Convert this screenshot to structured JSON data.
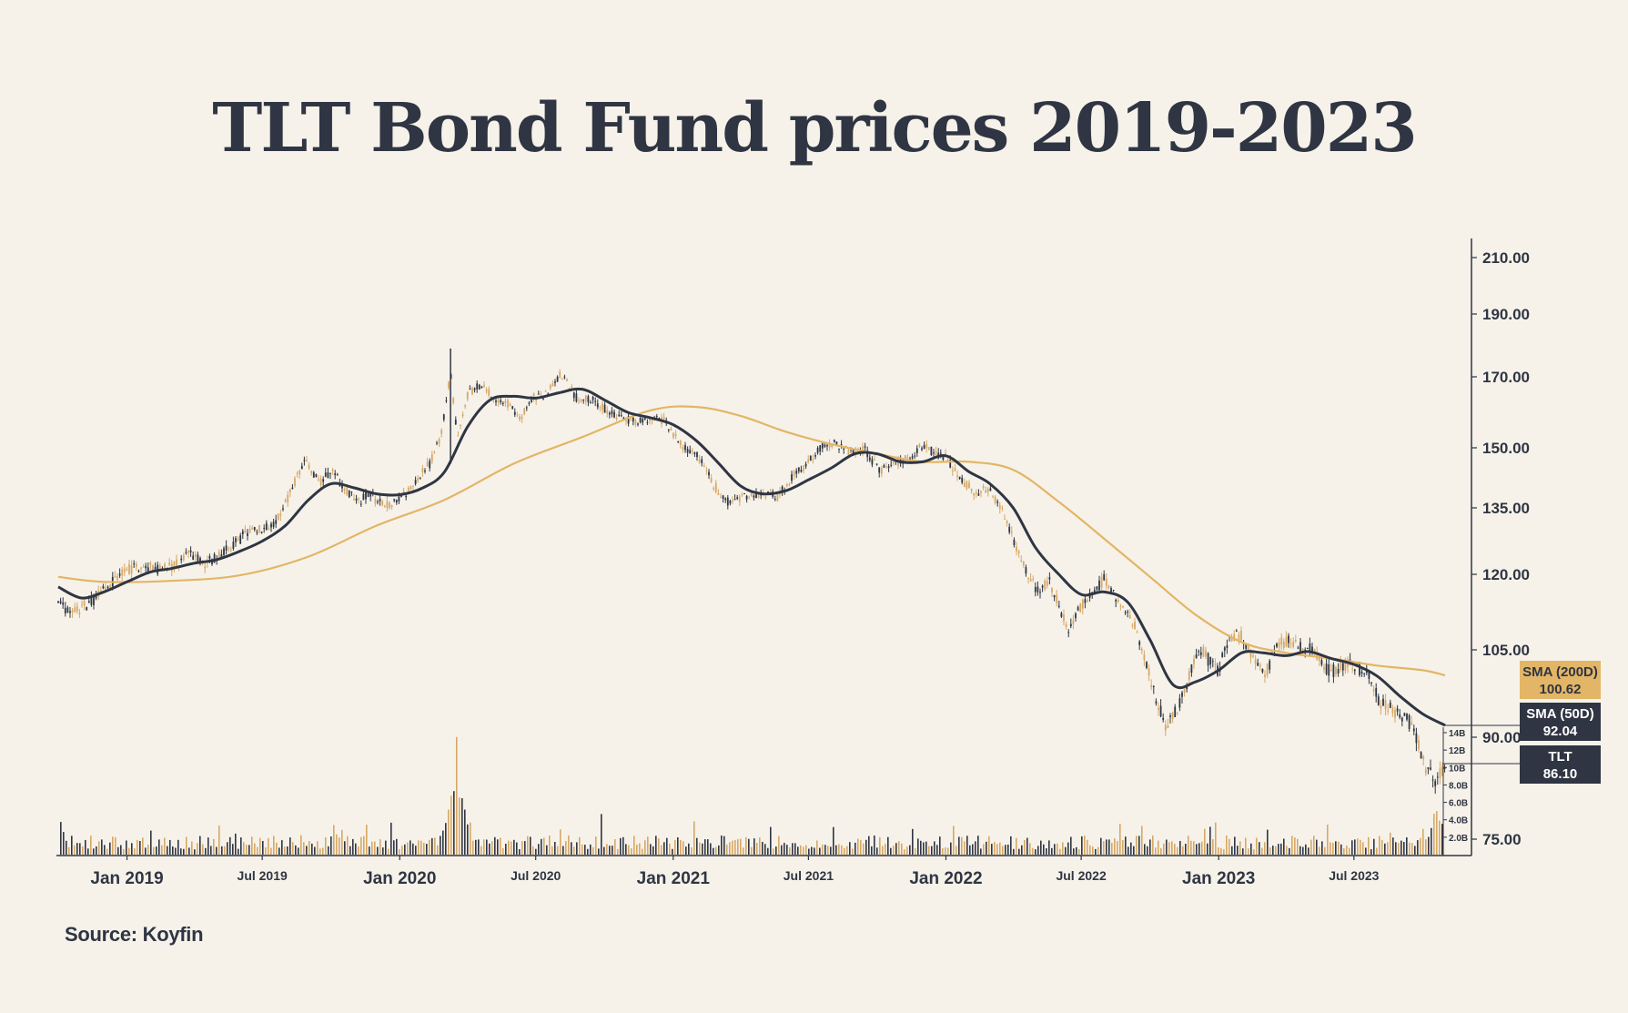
{
  "title": "TLT Bond Fund prices 2019-2023",
  "source": "Source: Koyfin",
  "colors": {
    "background": "#f6f2ea",
    "dark": "#2f3542",
    "gold": "#e3b566",
    "gold_candle": "#d7a866"
  },
  "chart_data": {
    "type": "line",
    "title": "TLT Bond Fund prices 2019-2023",
    "x_ticks": [
      {
        "label": "Jan 2019",
        "date": "2019-01-01",
        "major": true
      },
      {
        "label": "Jul 2019",
        "date": "2019-07-01",
        "major": false
      },
      {
        "label": "Jan 2020",
        "date": "2020-01-01",
        "major": true
      },
      {
        "label": "Jul 2020",
        "date": "2020-07-01",
        "major": false
      },
      {
        "label": "Jan 2021",
        "date": "2021-01-01",
        "major": true
      },
      {
        "label": "Jul 2021",
        "date": "2021-07-01",
        "major": false
      },
      {
        "label": "Jan 2022",
        "date": "2022-01-01",
        "major": true
      },
      {
        "label": "Jul 2022",
        "date": "2022-07-01",
        "major": false
      },
      {
        "label": "Jan 2023",
        "date": "2023-01-01",
        "major": true
      },
      {
        "label": "Jul 2023",
        "date": "2023-07-01",
        "major": false
      }
    ],
    "x_range": [
      "2018-10-01",
      "2023-10-31"
    ],
    "y_ticks": [
      "210.00",
      "190.00",
      "170.00",
      "150.00",
      "135.00",
      "120.00",
      "105.00",
      "90.00",
      "75.00"
    ],
    "y_tick_values": [
      210,
      190,
      170,
      150,
      135,
      120,
      105,
      90,
      75
    ],
    "volume_ticks": [
      "14B",
      "12B",
      "10B",
      "8.0B",
      "6.0B",
      "4.0B",
      "2.0B"
    ],
    "volume_tick_values": [
      14,
      12,
      10,
      8,
      6,
      4,
      2
    ],
    "series": [
      {
        "name": "TLT",
        "kind": "candlestick",
        "last_value": "86.10",
        "points": [
          [
            "2018-10-01",
            114
          ],
          [
            "2018-10-20",
            112.5
          ],
          [
            "2018-11-10",
            114
          ],
          [
            "2018-11-30",
            116.5
          ],
          [
            "2018-12-15",
            119
          ],
          [
            "2019-01-01",
            121
          ],
          [
            "2019-01-20",
            122
          ],
          [
            "2019-02-10",
            121
          ],
          [
            "2019-03-01",
            121.5
          ],
          [
            "2019-03-25",
            124.5
          ],
          [
            "2019-04-15",
            122.5
          ],
          [
            "2019-05-05",
            124
          ],
          [
            "2019-05-25",
            127
          ],
          [
            "2019-06-15",
            130
          ],
          [
            "2019-07-01",
            130
          ],
          [
            "2019-07-15",
            131
          ],
          [
            "2019-08-01",
            136
          ],
          [
            "2019-08-15",
            142
          ],
          [
            "2019-08-28",
            147
          ],
          [
            "2019-09-15",
            141.5
          ],
          [
            "2019-10-01",
            144
          ],
          [
            "2019-10-20",
            140
          ],
          [
            "2019-11-05",
            136
          ],
          [
            "2019-11-20",
            138.5
          ],
          [
            "2019-12-10",
            135.5
          ],
          [
            "2020-01-01",
            137
          ],
          [
            "2020-01-20",
            141
          ],
          [
            "2020-02-10",
            146
          ],
          [
            "2020-02-25",
            153
          ],
          [
            "2020-03-09",
            171
          ],
          [
            "2020-03-18",
            153
          ],
          [
            "2020-04-01",
            165
          ],
          [
            "2020-04-20",
            168
          ],
          [
            "2020-05-10",
            163
          ],
          [
            "2020-05-25",
            162.5
          ],
          [
            "2020-06-10",
            158
          ],
          [
            "2020-06-25",
            164
          ],
          [
            "2020-07-15",
            165
          ],
          [
            "2020-08-04",
            171
          ],
          [
            "2020-08-25",
            164
          ],
          [
            "2020-09-15",
            163.5
          ],
          [
            "2020-10-05",
            160.5
          ],
          [
            "2020-10-25",
            158
          ],
          [
            "2020-11-10",
            157.5
          ],
          [
            "2020-12-01",
            158
          ],
          [
            "2020-12-20",
            157.5
          ],
          [
            "2021-01-10",
            151
          ],
          [
            "2021-02-01",
            148.5
          ],
          [
            "2021-02-25",
            140.5
          ],
          [
            "2021-03-18",
            136
          ],
          [
            "2021-04-10",
            138
          ],
          [
            "2021-05-01",
            139
          ],
          [
            "2021-05-20",
            137.5
          ],
          [
            "2021-06-10",
            143
          ],
          [
            "2021-07-01",
            146.5
          ],
          [
            "2021-07-20",
            151
          ],
          [
            "2021-08-05",
            151.5
          ],
          [
            "2021-08-25",
            149
          ],
          [
            "2021-09-15",
            149.5
          ],
          [
            "2021-10-05",
            144
          ],
          [
            "2021-10-25",
            146
          ],
          [
            "2021-11-15",
            148
          ],
          [
            "2021-12-01",
            150.5
          ],
          [
            "2021-12-15",
            149
          ],
          [
            "2022-01-01",
            147.5
          ],
          [
            "2022-01-20",
            142.5
          ],
          [
            "2022-02-10",
            138.5
          ],
          [
            "2022-03-01",
            140
          ],
          [
            "2022-03-20",
            133
          ],
          [
            "2022-04-10",
            124
          ],
          [
            "2022-05-01",
            117
          ],
          [
            "2022-05-20",
            118.5
          ],
          [
            "2022-06-14",
            109
          ],
          [
            "2022-07-01",
            114
          ],
          [
            "2022-07-20",
            117
          ],
          [
            "2022-08-01",
            119
          ],
          [
            "2022-08-20",
            114
          ],
          [
            "2022-09-10",
            110
          ],
          [
            "2022-09-25",
            103
          ],
          [
            "2022-10-10",
            96
          ],
          [
            "2022-10-24",
            91.5
          ],
          [
            "2022-11-10",
            96
          ],
          [
            "2022-11-30",
            103
          ],
          [
            "2022-12-10",
            105
          ],
          [
            "2022-12-30",
            101
          ],
          [
            "2023-01-15",
            107
          ],
          [
            "2023-02-01",
            108
          ],
          [
            "2023-02-20",
            102
          ],
          [
            "2023-03-05",
            101
          ],
          [
            "2023-03-20",
            106
          ],
          [
            "2023-04-05",
            107
          ],
          [
            "2023-04-25",
            105.5
          ],
          [
            "2023-05-10",
            105
          ],
          [
            "2023-05-30",
            101
          ],
          [
            "2023-06-15",
            102.5
          ],
          [
            "2023-07-01",
            102
          ],
          [
            "2023-07-20",
            101
          ],
          [
            "2023-08-05",
            96
          ],
          [
            "2023-08-25",
            94.5
          ],
          [
            "2023-09-10",
            93.5
          ],
          [
            "2023-09-25",
            89
          ],
          [
            "2023-10-06",
            85
          ],
          [
            "2023-10-20",
            83.5
          ],
          [
            "2023-10-31",
            86.1
          ]
        ]
      },
      {
        "name": "SMA (50D)",
        "kind": "line",
        "color": "#2f3542",
        "last_value": "92.04",
        "points": [
          [
            "2018-10-01",
            117.5
          ],
          [
            "2018-11-01",
            115.3
          ],
          [
            "2018-12-01",
            116.5
          ],
          [
            "2019-01-01",
            118.5
          ],
          [
            "2019-02-01",
            120.5
          ],
          [
            "2019-03-01",
            121.3
          ],
          [
            "2019-04-01",
            122.5
          ],
          [
            "2019-05-01",
            123.3
          ],
          [
            "2019-06-01",
            125.2
          ],
          [
            "2019-07-01",
            127.5
          ],
          [
            "2019-08-01",
            131
          ],
          [
            "2019-09-01",
            137
          ],
          [
            "2019-10-01",
            141
          ],
          [
            "2019-11-01",
            140
          ],
          [
            "2019-12-01",
            138.5
          ],
          [
            "2020-01-01",
            138.3
          ],
          [
            "2020-02-01",
            140
          ],
          [
            "2020-03-01",
            144
          ],
          [
            "2020-04-01",
            156
          ],
          [
            "2020-05-01",
            163.5
          ],
          [
            "2020-06-01",
            164.5
          ],
          [
            "2020-07-01",
            164
          ],
          [
            "2020-08-01",
            165.5
          ],
          [
            "2020-09-01",
            166.5
          ],
          [
            "2020-10-01",
            163.5
          ],
          [
            "2020-11-01",
            160
          ],
          [
            "2020-12-01",
            158.5
          ],
          [
            "2021-01-01",
            156.5
          ],
          [
            "2021-02-01",
            152
          ],
          [
            "2021-03-01",
            146.5
          ],
          [
            "2021-04-01",
            140.5
          ],
          [
            "2021-05-01",
            138.5
          ],
          [
            "2021-06-01",
            139.3
          ],
          [
            "2021-07-01",
            142
          ],
          [
            "2021-08-01",
            145
          ],
          [
            "2021-09-01",
            148.5
          ],
          [
            "2021-10-01",
            148.5
          ],
          [
            "2021-11-01",
            146.5
          ],
          [
            "2021-12-01",
            146.5
          ],
          [
            "2022-01-01",
            148
          ],
          [
            "2022-02-01",
            144
          ],
          [
            "2022-03-01",
            141
          ],
          [
            "2022-04-01",
            135
          ],
          [
            "2022-05-01",
            126
          ],
          [
            "2022-06-01",
            120
          ],
          [
            "2022-07-01",
            116
          ],
          [
            "2022-08-01",
            116.5
          ],
          [
            "2022-09-01",
            114.5
          ],
          [
            "2022-10-01",
            107
          ],
          [
            "2022-11-01",
            99
          ],
          [
            "2022-12-01",
            99.5
          ],
          [
            "2023-01-01",
            101.5
          ],
          [
            "2023-02-01",
            104.5
          ],
          [
            "2023-03-01",
            104.5
          ],
          [
            "2023-04-01",
            104
          ],
          [
            "2023-05-01",
            104.7
          ],
          [
            "2023-06-01",
            103.5
          ],
          [
            "2023-07-01",
            102.5
          ],
          [
            "2023-08-01",
            100.5
          ],
          [
            "2023-09-01",
            97
          ],
          [
            "2023-10-01",
            94
          ],
          [
            "2023-10-31",
            92.04
          ]
        ]
      },
      {
        "name": "SMA (200D)",
        "kind": "line",
        "color": "#e3b566",
        "last_value": "100.62",
        "points": [
          [
            "2018-10-01",
            119.5
          ],
          [
            "2018-12-01",
            118.5
          ],
          [
            "2019-03-01",
            118.7
          ],
          [
            "2019-06-01",
            119.8
          ],
          [
            "2019-09-01",
            124
          ],
          [
            "2019-12-01",
            131
          ],
          [
            "2020-03-01",
            137
          ],
          [
            "2020-06-01",
            146
          ],
          [
            "2020-09-01",
            153
          ],
          [
            "2020-12-01",
            160.5
          ],
          [
            "2021-02-01",
            161.5
          ],
          [
            "2021-04-01",
            159
          ],
          [
            "2021-06-01",
            154.5
          ],
          [
            "2021-08-01",
            151
          ],
          [
            "2021-10-01",
            148.5
          ],
          [
            "2021-12-01",
            146.5
          ],
          [
            "2022-02-01",
            146.5
          ],
          [
            "2022-04-01",
            144.5
          ],
          [
            "2022-06-01",
            136.5
          ],
          [
            "2022-08-01",
            128
          ],
          [
            "2022-10-01",
            119.5
          ],
          [
            "2022-12-01",
            112
          ],
          [
            "2023-02-01",
            106.5
          ],
          [
            "2023-04-01",
            104.5
          ],
          [
            "2023-06-01",
            103.5
          ],
          [
            "2023-08-01",
            102.3
          ],
          [
            "2023-10-01",
            101.5
          ],
          [
            "2023-10-31",
            100.62
          ]
        ]
      }
    ],
    "legend": [
      {
        "label": "SMA (200D)",
        "value": "100.62",
        "color": "#e3b566"
      },
      {
        "label": "SMA (50D)",
        "value": "92.04",
        "color": "#2f3542"
      },
      {
        "label": "TLT",
        "value": "86.10",
        "color": "#2f3542"
      }
    ],
    "volume_peak": {
      "date": "2020-03-16",
      "value": 13.5
    },
    "legend_placement": "right",
    "grid": false
  }
}
